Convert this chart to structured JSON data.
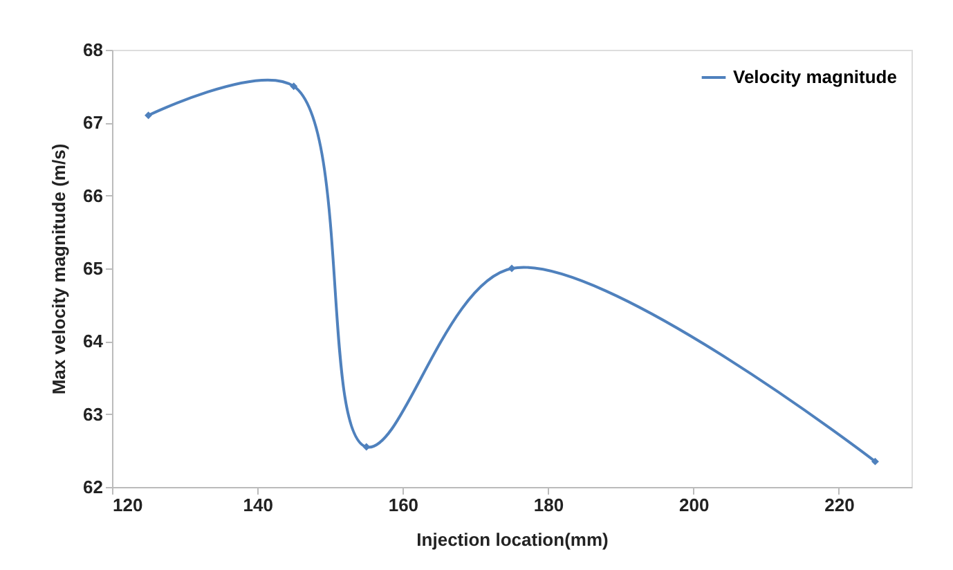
{
  "chart_data": {
    "type": "line",
    "xlabel": "Injection location(mm)",
    "ylabel": "Max velocity magnitude (m/s)",
    "x": [
      125,
      145,
      155,
      175,
      225
    ],
    "series": [
      {
        "name": "Velocity magnitude",
        "color": "#4f81bd",
        "values": [
          67.1,
          67.5,
          62.55,
          65.0,
          62.35
        ]
      }
    ],
    "xlim": [
      120,
      230
    ],
    "xticks": [
      120,
      140,
      160,
      180,
      200,
      220
    ],
    "ylim": [
      62,
      68
    ],
    "yticks": [
      62,
      63,
      64,
      65,
      66,
      67,
      68
    ],
    "grid": false,
    "legend": "top right",
    "marker": "diamond",
    "line_style": "solid"
  }
}
